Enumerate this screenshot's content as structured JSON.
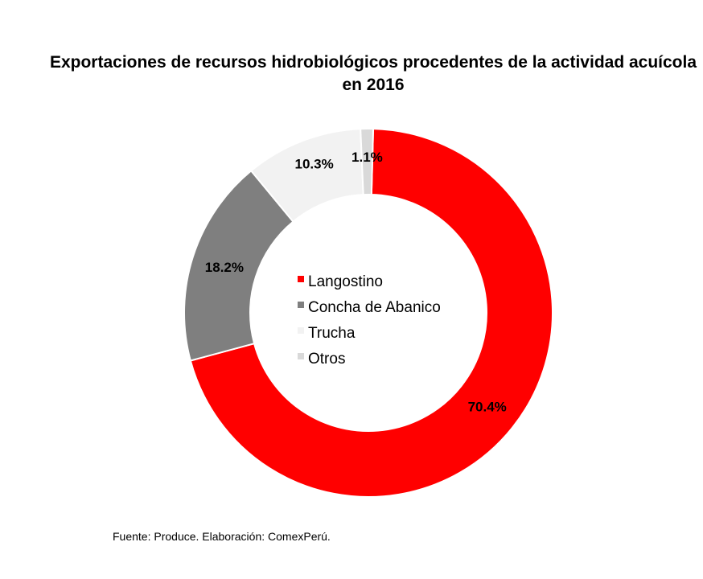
{
  "chart_data": {
    "type": "pie",
    "variant": "donut",
    "title": "Exportaciones de recursos hidrobiológicos procedentes de la actividad acuícola en 2016",
    "categories": [
      "Langostino",
      "Concha de Abanico",
      "Trucha",
      "Otros"
    ],
    "values": [
      70.4,
      18.2,
      10.3,
      1.1
    ],
    "data_labels": [
      "70.4%",
      "18.2%",
      "10.3%",
      "1.1%"
    ],
    "colors": [
      "#ff0000",
      "#7f7f7f",
      "#f2f2f2",
      "#d9d9d9"
    ],
    "legend_placement": "center"
  },
  "source": "Fuente: Produce. Elaboración:  ComexPerú."
}
